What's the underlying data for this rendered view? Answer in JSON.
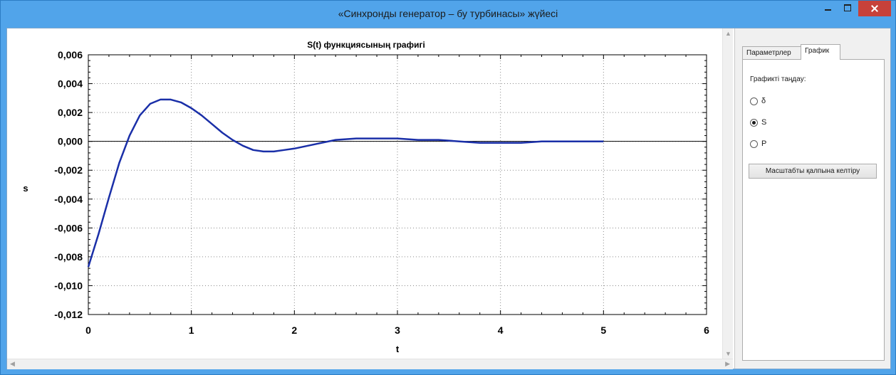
{
  "window": {
    "title": "«Синхронды генератор – бу турбинасы» жүйесі"
  },
  "chart_data": {
    "type": "line",
    "title": "S(t) функциясының графигі",
    "xlabel": "t",
    "ylabel": "s",
    "xlim": [
      0,
      6
    ],
    "ylim": [
      -0.012,
      0.006
    ],
    "x_ticks": [
      "0",
      "1",
      "2",
      "3",
      "4",
      "5",
      "6"
    ],
    "y_ticks": [
      "0,006",
      "0,004",
      "0,002",
      "0,000",
      "-0,002",
      "-0,004",
      "-0,006",
      "-0,008",
      "-0,010",
      "-0,012"
    ],
    "grid": true,
    "series": [
      {
        "color": "#1a2fa8",
        "x": [
          0,
          0.1,
          0.2,
          0.3,
          0.4,
          0.5,
          0.6,
          0.7,
          0.8,
          0.9,
          1.0,
          1.1,
          1.2,
          1.3,
          1.4,
          1.5,
          1.6,
          1.7,
          1.8,
          1.9,
          2.0,
          2.2,
          2.4,
          2.6,
          2.8,
          3.0,
          3.2,
          3.4,
          3.6,
          3.8,
          4.0,
          4.2,
          4.4,
          4.6,
          4.8,
          5.0
        ],
        "y": [
          -0.0087,
          -0.0064,
          -0.0039,
          -0.0015,
          0.0004,
          0.0018,
          0.0026,
          0.0029,
          0.0029,
          0.0027,
          0.0023,
          0.0018,
          0.0012,
          0.0006,
          0.0001,
          -0.0003,
          -0.0006,
          -0.0007,
          -0.0007,
          -0.0006,
          -0.0005,
          -0.0002,
          0.0001,
          0.0002,
          0.0002,
          0.0002,
          0.0001,
          0.0001,
          0.0,
          -0.0001,
          -0.0001,
          -0.0001,
          0.0,
          0.0,
          0.0,
          0.0
        ]
      }
    ]
  },
  "panel": {
    "tabs": [
      {
        "label": "Параметрлер",
        "active": false
      },
      {
        "label": "График",
        "active": true
      }
    ],
    "choose_label": "Графикті таңдау:",
    "options": [
      {
        "label": "δ",
        "checked": false
      },
      {
        "label": "S",
        "checked": true
      },
      {
        "label": "P",
        "checked": false
      }
    ],
    "reset_button": "Масштабты қалпына келтіру"
  }
}
